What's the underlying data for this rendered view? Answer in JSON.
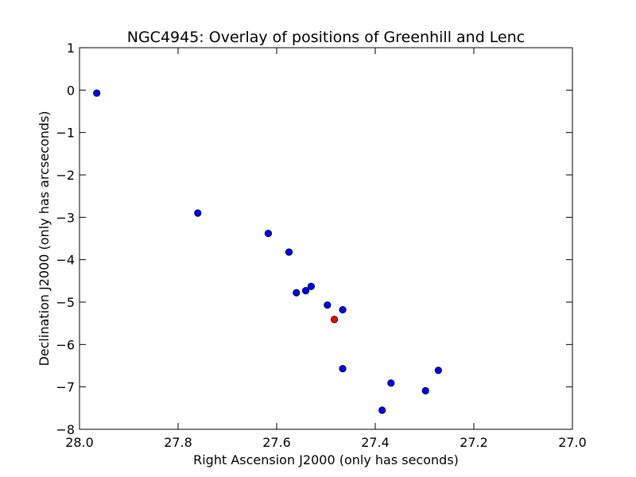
{
  "chart_data": {
    "type": "scatter",
    "title": "NGC4945: Overlay of positions of Greenhill and Lenc",
    "xlabel": "Right Ascension J2000 (only has seconds)",
    "ylabel": "Declination J2000 (only has arcseconds)",
    "xlim": [
      28.0,
      27.0
    ],
    "ylim": [
      -8,
      1
    ],
    "xticks": [
      28.0,
      27.8,
      27.6,
      27.4,
      27.2,
      27.0
    ],
    "xtick_labels": [
      "28.0",
      "27.8",
      "27.6",
      "27.4",
      "27.2",
      "27.0"
    ],
    "yticks": [
      1,
      0,
      -1,
      -2,
      -3,
      -4,
      -5,
      -6,
      -7,
      -8
    ],
    "ytick_labels": [
      "1",
      "0",
      "−1",
      "−2",
      "−3",
      "−4",
      "−5",
      "−6",
      "−7",
      "−8"
    ],
    "grid": false,
    "series": [
      {
        "color": "#0000ff",
        "points": [
          {
            "x": 27.965,
            "y": -0.07
          },
          {
            "x": 27.76,
            "y": -2.9
          },
          {
            "x": 27.617,
            "y": -3.38
          },
          {
            "x": 27.575,
            "y": -3.82
          },
          {
            "x": 27.56,
            "y": -4.78
          },
          {
            "x": 27.541,
            "y": -4.73
          },
          {
            "x": 27.53,
            "y": -4.63
          },
          {
            "x": 27.497,
            "y": -5.07
          },
          {
            "x": 27.466,
            "y": -5.18
          },
          {
            "x": 27.466,
            "y": -6.57
          },
          {
            "x": 27.386,
            "y": -7.55
          },
          {
            "x": 27.368,
            "y": -6.91
          },
          {
            "x": 27.298,
            "y": -7.09
          },
          {
            "x": 27.272,
            "y": -6.61
          }
        ]
      },
      {
        "color": "#ff0000",
        "points": [
          {
            "x": 27.483,
            "y": -5.41
          }
        ]
      }
    ]
  }
}
